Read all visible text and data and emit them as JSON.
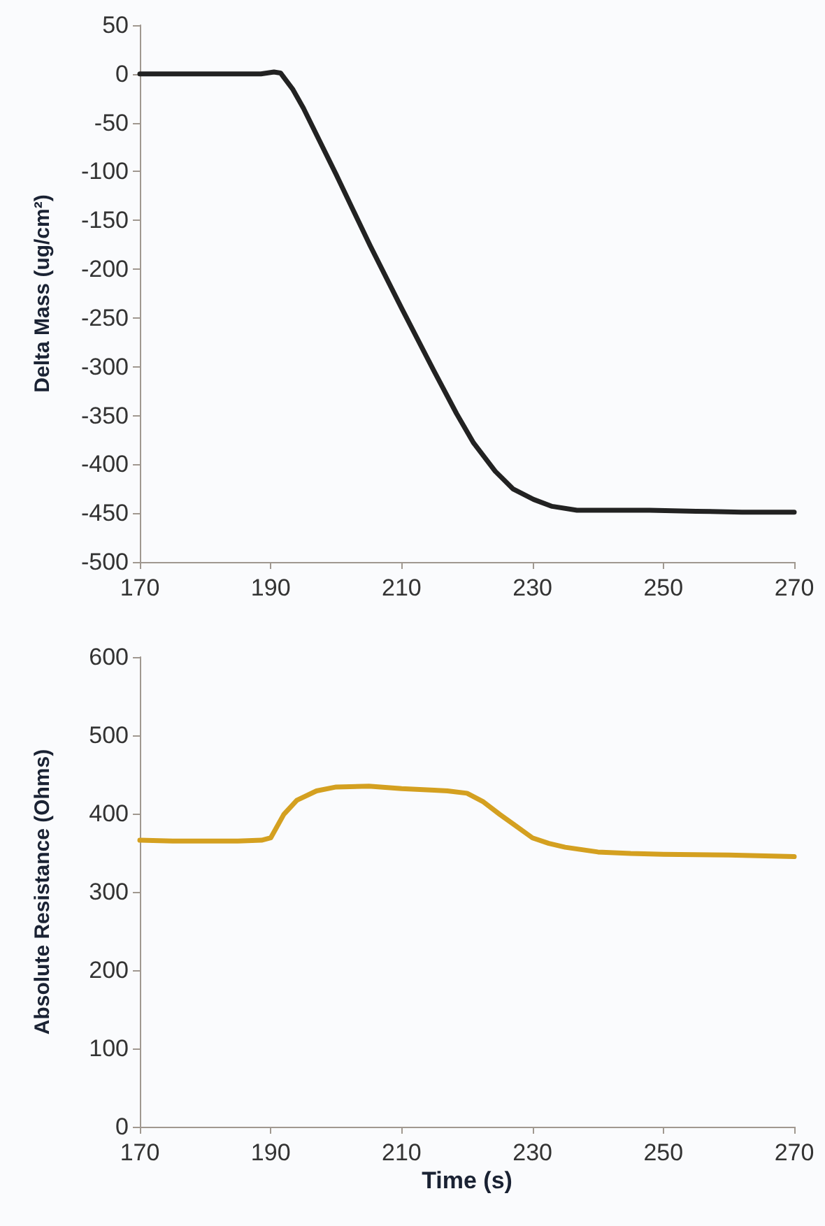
{
  "chart_data": [
    {
      "type": "line",
      "ylabel": "Delta Mass (ug/cm²)",
      "xlim": [
        170,
        270
      ],
      "xticks": [
        170,
        190,
        210,
        230,
        250,
        270
      ],
      "ylim": [
        -500,
        50
      ],
      "yticks": [
        -500,
        -450,
        -400,
        -350,
        -300,
        -250,
        -200,
        -150,
        -100,
        -50,
        0,
        50
      ],
      "grid": false,
      "marker": "none",
      "line_style": "solid",
      "series": [
        {
          "color": "#222222",
          "x": [
            170,
            180,
            188.5,
            190.5,
            191.5,
            193.4,
            195,
            200,
            205.2,
            210,
            215,
            218.4,
            221,
            224.3,
            227,
            230.2,
            233,
            236.8,
            242,
            247.9,
            255,
            262,
            270
          ],
          "values": [
            0,
            0,
            0,
            2,
            1,
            -16,
            -35,
            -103,
            -176,
            -240,
            -305,
            -348,
            -378,
            -407,
            -425,
            -436,
            -443,
            -447,
            -447,
            -447,
            -448,
            -449,
            -449
          ]
        }
      ]
    },
    {
      "type": "line",
      "xlabel": "Time (s)",
      "ylabel": "Absolute Resistance (Ohms)",
      "xlim": [
        170,
        270
      ],
      "xticks": [
        170,
        190,
        210,
        230,
        250,
        270
      ],
      "ylim": [
        0,
        600
      ],
      "yticks": [
        0,
        100,
        200,
        300,
        400,
        500,
        600
      ],
      "grid": false,
      "marker": "none",
      "line_style": "solid",
      "series": [
        {
          "color": "#d4a020",
          "x": [
            170,
            175,
            180,
            185,
            188.6,
            190,
            192,
            194,
            197,
            200,
            205,
            210,
            215,
            217,
            220,
            222.5,
            225,
            227.5,
            230,
            232.5,
            235,
            240,
            245,
            250,
            260,
            270
          ],
          "values": [
            366,
            365,
            365,
            365,
            366,
            369,
            399,
            417,
            429,
            434,
            435,
            432,
            430,
            429,
            426,
            415,
            399,
            384,
            369,
            362,
            357,
            351,
            349,
            348,
            347,
            345
          ]
        }
      ]
    }
  ]
}
